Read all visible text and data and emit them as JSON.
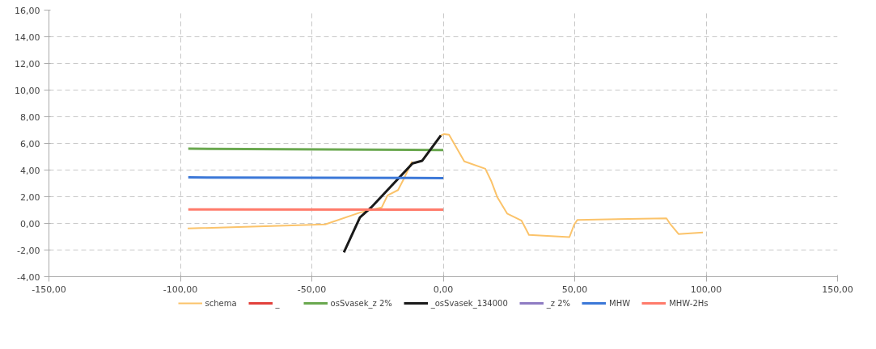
{
  "chart_data": {
    "type": "line",
    "xlim": [
      -150,
      150
    ],
    "xticks": [
      {
        "value": -150,
        "label": "-150,00"
      },
      {
        "value": -100,
        "label": "-100,00"
      },
      {
        "value": -50,
        "label": "-50,00"
      },
      {
        "value": 0,
        "label": "0,00"
      },
      {
        "value": 50,
        "label": "50,00"
      },
      {
        "value": 100,
        "label": "100,00"
      },
      {
        "value": 150,
        "label": "150,00"
      }
    ],
    "ylim": [
      -4,
      16
    ],
    "yticks": [
      {
        "value": -4,
        "label": "-4,00"
      },
      {
        "value": -2,
        "label": "-2,00"
      },
      {
        "value": 0,
        "label": "0,00"
      },
      {
        "value": 2,
        "label": "2,00"
      },
      {
        "value": 4,
        "label": "4,00"
      },
      {
        "value": 6,
        "label": "6,00"
      },
      {
        "value": 8,
        "label": "8,00"
      },
      {
        "value": 10,
        "label": "10,00"
      },
      {
        "value": 12,
        "label": "12,00"
      },
      {
        "value": 14,
        "label": "14,00"
      },
      {
        "value": 16,
        "label": "16,00"
      }
    ],
    "grid": true,
    "legend": "bottom",
    "marker": "none",
    "line_style": "solid",
    "series": [
      {
        "name": "schema",
        "color": "#fbc36a",
        "x": [
          -97.2,
          -44.9,
          -31.7,
          -23.4,
          -21.2,
          -17.2,
          -15.1,
          -12,
          -11.7,
          -8,
          -0.9,
          0.3,
          2.2,
          8,
          16,
          18.2,
          20.6,
          24.3,
          29.8,
          32.6,
          48,
          49.8,
          51,
          84.9,
          86.5,
          89.5,
          98.8
        ],
        "values": [
          -0.38,
          -0.08,
          0.81,
          1.2,
          2.1,
          2.5,
          3.3,
          4.6,
          4.5,
          4.7,
          6.6,
          6.7,
          6.65,
          4.65,
          4.1,
          3.2,
          1.95,
          0.74,
          0.2,
          -0.86,
          -1.03,
          -0.09,
          0.26,
          0.38,
          -0.09,
          -0.8,
          -0.68
        ]
      },
      {
        "name": "_",
        "color": "#e2413b"
      },
      {
        "name": "osSvasek_z 2%",
        "color": "#6aa84f",
        "x": [
          -97,
          0
        ],
        "values": [
          5.6,
          5.5
        ]
      },
      {
        "name": "_osSvasek_134000",
        "color": "#1a1a1a",
        "x": [
          -37.8,
          -31.7,
          -27.4,
          -11.7,
          -8,
          -0.9
        ],
        "values": [
          -2.17,
          0.44,
          1.2,
          4.5,
          4.7,
          6.6
        ]
      },
      {
        "name": "_z 2%",
        "color": "#8e7cc3"
      },
      {
        "name": "MHW",
        "color": "#3c78d8",
        "x": [
          -97,
          0
        ],
        "values": [
          3.45,
          3.4
        ]
      },
      {
        "name": "MHW-2Hs",
        "color": "#ff7b6b",
        "x": [
          -97,
          0
        ],
        "values": [
          1.05,
          1.03
        ]
      }
    ]
  }
}
